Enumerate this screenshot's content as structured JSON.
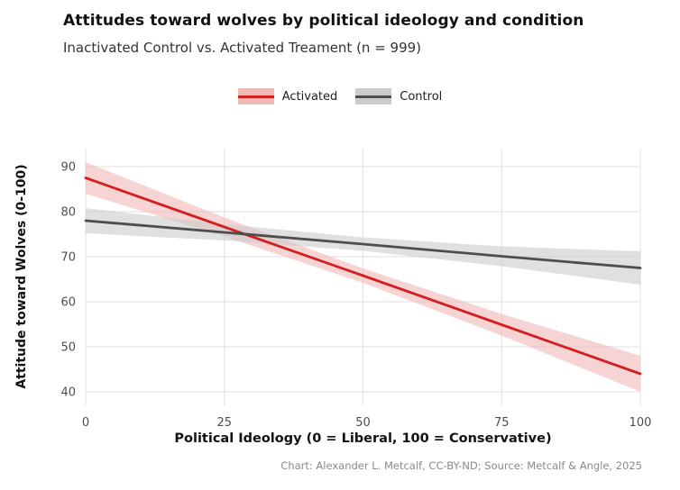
{
  "chart": {
    "title": "Attitudes toward wolves by political ideology and condition",
    "subtitle": "Inactivated Control vs. Activated Treament (n = 999)",
    "xlabel": "Political Ideology (0 = Liberal, 100 = Conservative)",
    "ylabel": "Attitude toward Wolves (0-100)",
    "caption": "Chart: Alexander L. Metcalf, CC-BY-ND; Source: Metcalf & Angle, 2025"
  },
  "chart_data": {
    "type": "line",
    "x": [
      0,
      25,
      50,
      75,
      100
    ],
    "series": [
      {
        "name": "Activated",
        "color": "#d21f1f",
        "band_color": "#f2b8b8",
        "values": [
          87.5,
          76.6,
          65.8,
          54.9,
          44.0
        ],
        "band_upper": [
          91.0,
          78.7,
          67.4,
          57.3,
          48.0
        ],
        "band_lower": [
          84.0,
          74.5,
          64.2,
          52.5,
          40.0
        ]
      },
      {
        "name": "Control",
        "color": "#4d4d4d",
        "band_color": "#cccccc",
        "values": [
          78.0,
          75.4,
          72.8,
          70.1,
          67.5
        ],
        "band_upper": [
          80.8,
          77.2,
          74.3,
          72.3,
          71.2
        ],
        "band_lower": [
          75.2,
          73.6,
          71.3,
          67.9,
          63.8
        ]
      }
    ],
    "xticks": [
      0,
      25,
      50,
      75,
      100
    ],
    "yticks": [
      40,
      50,
      60,
      70,
      80,
      90
    ],
    "xlim": [
      0,
      100
    ],
    "ylim": [
      37,
      94
    ],
    "legend_position": "top-center",
    "grid": true
  }
}
